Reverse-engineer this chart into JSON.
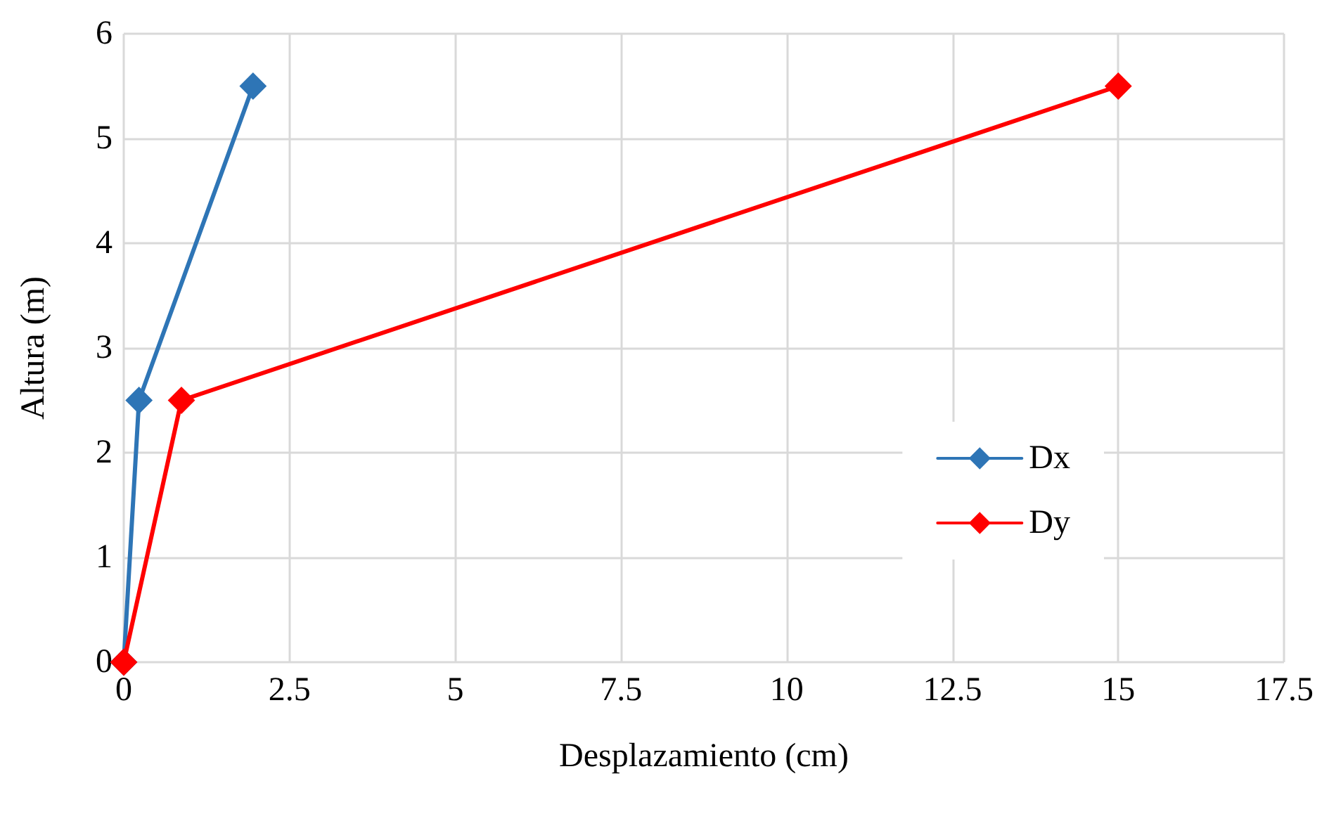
{
  "chart_data": {
    "type": "line",
    "xlabel": "Desplazamiento (cm)",
    "ylabel": "Altura (m)",
    "xlim": [
      0,
      17.5
    ],
    "xticks": [
      0,
      2.5,
      5,
      7.5,
      10,
      12.5,
      15,
      17.5
    ],
    "ylim": [
      0,
      6
    ],
    "yticks": [
      0,
      1,
      2,
      3,
      4,
      5,
      6
    ],
    "grid": true,
    "legend": "right",
    "marker": "diamond",
    "line_style": "solid",
    "series": [
      {
        "name": "Dx",
        "color": "#2e75b6",
        "x": [
          0,
          0.23,
          1.95
        ],
        "values": [
          0,
          2.5,
          5.5
        ]
      },
      {
        "name": "Dy",
        "color": "#ff0000",
        "x": [
          0,
          0.87,
          15
        ],
        "values": [
          0,
          2.5,
          5.5
        ]
      }
    ]
  }
}
